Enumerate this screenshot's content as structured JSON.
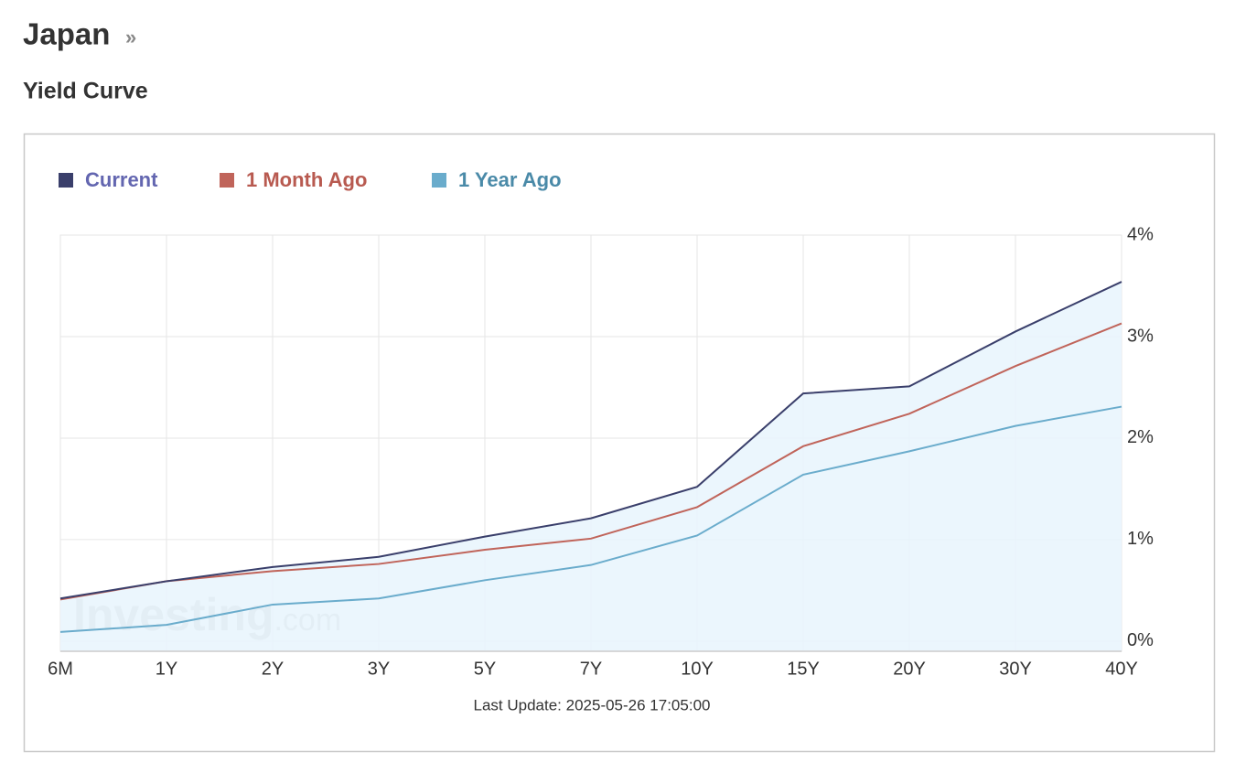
{
  "header": {
    "title": "Japan",
    "link_icon": "»",
    "subtitle": "Yield Curve"
  },
  "chart_data": {
    "type": "line",
    "categories": [
      "6M",
      "1Y",
      "2Y",
      "3Y",
      "5Y",
      "7Y",
      "10Y",
      "15Y",
      "20Y",
      "30Y",
      "40Y"
    ],
    "series": [
      {
        "name": "Current",
        "color": "#3a3f6b",
        "legend_text_color": "#6366b0",
        "area": true,
        "values": [
          0.42,
          0.59,
          0.73,
          0.83,
          1.03,
          1.21,
          1.52,
          2.44,
          2.51,
          3.05,
          3.54
        ]
      },
      {
        "name": "1 Month Ago",
        "color": "#c0645a",
        "legend_text_color": "#b85a50",
        "values": [
          0.41,
          0.59,
          0.69,
          0.76,
          0.9,
          1.01,
          1.32,
          1.92,
          2.24,
          2.71,
          3.13
        ]
      },
      {
        "name": "1 Year Ago",
        "color": "#6aaccc",
        "legend_text_color": "#4a8aa8",
        "values": [
          0.09,
          0.16,
          0.36,
          0.42,
          0.6,
          0.75,
          1.04,
          1.64,
          1.87,
          2.12,
          2.31
        ]
      }
    ],
    "ylim": [
      -0.1,
      4
    ],
    "yticks": [
      {
        "value": 0,
        "label": "0%"
      },
      {
        "value": 1,
        "label": "1%"
      },
      {
        "value": 2,
        "label": "2%"
      },
      {
        "value": 3,
        "label": "3%"
      },
      {
        "value": 4,
        "label": "4%"
      }
    ],
    "grid": true,
    "watermark": "Investing",
    "watermark_suffix": ".com",
    "footnote": "Last Update: 2025-05-26 17:05:00"
  }
}
